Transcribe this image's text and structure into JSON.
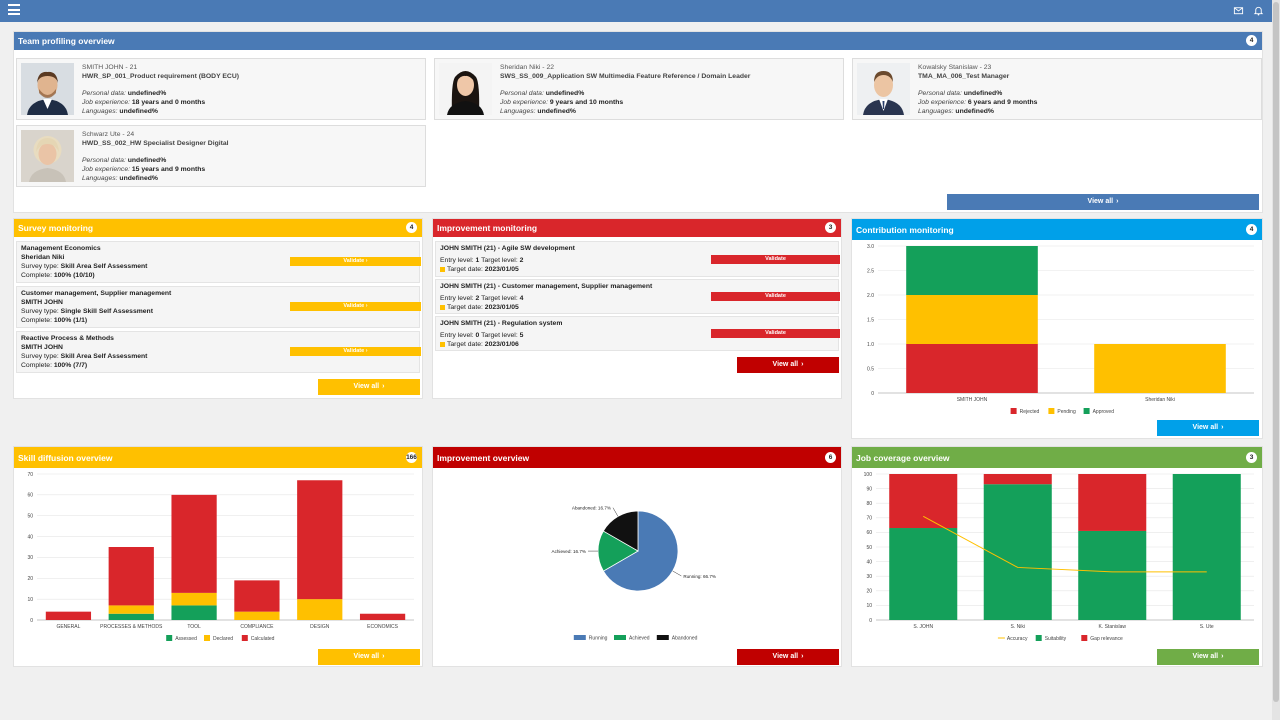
{
  "colors": {
    "topbar": "#4a7ab5",
    "yellow": "#ffc000",
    "red": "#d9262b",
    "darkred": "#c00000",
    "cyan": "#00a0e9",
    "green": "#70ad47",
    "approved": "#14a05a",
    "running": "#4a7ab5",
    "abandoned": "#111111"
  },
  "topbar": {
    "icons": [
      "menu-icon",
      "mail-icon",
      "bell-icon"
    ]
  },
  "team": {
    "title": "Team profiling overview",
    "badge": "4",
    "view_all": "View all",
    "labels": {
      "personal": "Personal data:",
      "experience": "Job experience:",
      "languages": "Languages:"
    },
    "members": [
      {
        "name": "SMITH JOHN - 21",
        "role": "HWR_SP_001_Product requirement (BODY ECU)",
        "personal": "undefined%",
        "experience": "18 years and 0 months",
        "languages": "undefined%"
      },
      {
        "name": "Sheridan Niki - 22",
        "role": "SWS_SS_009_Application SW Multimedia Feature Reference / Domain Leader",
        "personal": "undefined%",
        "experience": "9 years and 10 months",
        "languages": "undefined%"
      },
      {
        "name": "Kowalsky Stanislaw - 23",
        "role": "TMA_MA_006_Test Manager",
        "personal": "undefined%",
        "experience": "6 years and 9 months",
        "languages": "undefined%"
      },
      {
        "name": "Schwarz Ute - 24",
        "role": "HWD_SS_002_HW Specialist Designer Digital",
        "personal": "undefined%",
        "experience": "15 years and 9 months",
        "languages": "undefined%"
      }
    ]
  },
  "survey": {
    "title": "Survey monitoring",
    "badge": "4",
    "view_all": "View all",
    "validate": "Validate",
    "type_label": "Survey type:",
    "complete_label": "Complete:",
    "items": [
      {
        "title": "Management Economics",
        "person": "Sheridan Niki",
        "type": "Skill Area Self Assessment",
        "complete": "100% (10/10)"
      },
      {
        "title": "Customer management, Supplier management",
        "person": "SMITH JOHN",
        "type": "Single Skill Self Assessment",
        "complete": "100% (1/1)"
      },
      {
        "title": "Reactive Process & Methods",
        "person": "SMITH JOHN",
        "type": "Skill Area Self Assessment",
        "complete": "100% (7/7)"
      }
    ]
  },
  "improvement_monitoring": {
    "title": "Improvement monitoring",
    "badge": "3",
    "view_all": "View all",
    "validate": "Validate",
    "entry_label": "Entry level:",
    "target_label": "Target level:",
    "date_label": "Target date:",
    "items": [
      {
        "title": "JOHN SMITH (21) - Agile SW development",
        "entry": "1",
        "target": "2",
        "date": "2023/01/05"
      },
      {
        "title": "JOHN SMITH (21) - Customer management, Supplier management",
        "entry": "2",
        "target": "4",
        "date": "2023/01/05"
      },
      {
        "title": "JOHN SMITH (21) - Regulation system",
        "entry": "0",
        "target": "5",
        "date": "2023/01/06"
      }
    ]
  },
  "contribution": {
    "title": "Contribution monitoring",
    "badge": "4",
    "view_all": "View all"
  },
  "skill_diffusion": {
    "title": "Skill diffusion overview",
    "badge": "166",
    "view_all": "View all"
  },
  "improvement_overview": {
    "title": "Improvement overview",
    "badge": "6",
    "view_all": "View all"
  },
  "job_coverage": {
    "title": "Job coverage overview",
    "badge": "3",
    "view_all": "View all"
  },
  "chart_data": [
    {
      "id": "contribution",
      "type": "bar",
      "stacked": true,
      "categories": [
        "SMITH JOHN",
        "Sheridan Niki"
      ],
      "series": [
        {
          "name": "Rejected",
          "color": "#d9262b",
          "values": [
            1,
            0
          ]
        },
        {
          "name": "Pending",
          "color": "#ffc000",
          "values": [
            1,
            1
          ]
        },
        {
          "name": "Approved",
          "color": "#14a05a",
          "values": [
            1,
            0
          ]
        }
      ],
      "ylim": [
        0,
        3
      ],
      "yticks": [
        "3.0",
        "2.5",
        "2.0",
        "1.5",
        "1.0",
        "0.5",
        "0"
      ],
      "legend": "bottom"
    },
    {
      "id": "skill_diffusion",
      "type": "bar",
      "stacked": true,
      "categories": [
        "GENERAL",
        "PROCESSES & METHODS",
        "TOOL",
        "COMPLIANCE",
        "DESIGN",
        "ECONOMICS"
      ],
      "series": [
        {
          "name": "Assessed",
          "color": "#14a05a",
          "values": [
            0,
            3,
            7,
            0,
            0,
            0
          ]
        },
        {
          "name": "Declared",
          "color": "#ffc000",
          "values": [
            0,
            4,
            6,
            4,
            10,
            0
          ]
        },
        {
          "name": "Calculated",
          "color": "#d9262b",
          "values": [
            4,
            28,
            47,
            15,
            57,
            3
          ]
        }
      ],
      "ylim": [
        0,
        70
      ],
      "yticks": [
        "70",
        "60",
        "50",
        "40",
        "30",
        "20",
        "10",
        "0"
      ],
      "legend": "bottom"
    },
    {
      "id": "improvement_overview",
      "type": "pie",
      "slices": [
        {
          "name": "Running",
          "value": 66.7,
          "label": "Running: 66.7%",
          "color": "#4a7ab5"
        },
        {
          "name": "Achieved",
          "value": 16.7,
          "label": "Achieved: 16.7%",
          "color": "#14a05a"
        },
        {
          "name": "Abandoned",
          "value": 16.7,
          "label": "Abandoned: 16.7%",
          "color": "#111111"
        }
      ],
      "legend": "bottom"
    },
    {
      "id": "job_coverage",
      "type": "bar",
      "stacked": true,
      "categories": [
        "S. JOHN",
        "S. Niki",
        "K. Stanislaw",
        "S. Ute"
      ],
      "series": [
        {
          "name": "Suitability",
          "color": "#14a05a",
          "values": [
            63,
            93,
            61,
            100
          ]
        },
        {
          "name": "Gap relevance",
          "color": "#d9262b",
          "values": [
            37,
            7,
            39,
            0
          ]
        }
      ],
      "line": {
        "name": "Accuracy",
        "color": "#ffc000",
        "values": [
          71,
          36,
          33,
          33
        ]
      },
      "ylim": [
        0,
        100
      ],
      "yticks": [
        "100",
        "90",
        "80",
        "70",
        "60",
        "50",
        "40",
        "30",
        "20",
        "10",
        "0"
      ],
      "legend": "bottom"
    }
  ]
}
